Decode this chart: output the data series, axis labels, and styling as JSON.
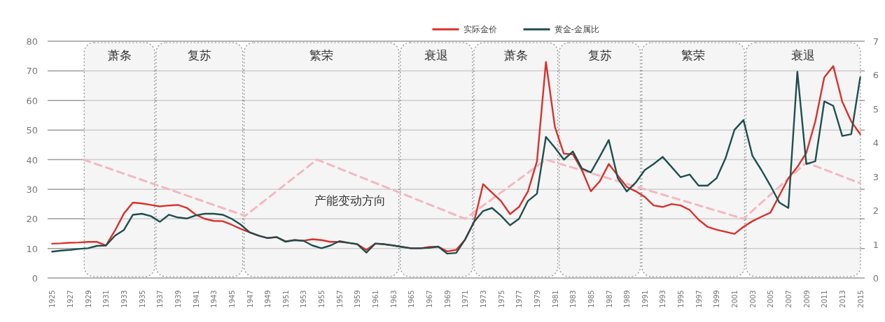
{
  "chart_data": {
    "type": "line",
    "x": [
      1925,
      1926,
      1927,
      1928,
      1929,
      1930,
      1931,
      1932,
      1933,
      1934,
      1935,
      1936,
      1937,
      1938,
      1939,
      1940,
      1941,
      1942,
      1943,
      1944,
      1945,
      1946,
      1947,
      1948,
      1949,
      1950,
      1951,
      1952,
      1953,
      1954,
      1955,
      1956,
      1957,
      1958,
      1959,
      1960,
      1961,
      1962,
      1963,
      1964,
      1965,
      1966,
      1967,
      1968,
      1969,
      1970,
      1971,
      1972,
      1973,
      1974,
      1975,
      1976,
      1977,
      1978,
      1979,
      1980,
      1981,
      1982,
      1983,
      1984,
      1985,
      1986,
      1987,
      1988,
      1989,
      1990,
      1991,
      1992,
      1993,
      1994,
      1995,
      1996,
      1997,
      1998,
      1999,
      2000,
      2001,
      2002,
      2003,
      2004,
      2005,
      2006,
      2007,
      2008,
      2009,
      2010,
      2011,
      2012,
      2013,
      2014,
      2015
    ],
    "series": [
      {
        "name": "实际金价",
        "color": "#d9302c",
        "values": [
          11.6,
          11.7,
          11.9,
          12,
          12.2,
          12.2,
          11,
          16,
          21.8,
          25.5,
          25.2,
          24.7,
          24.2,
          24.5,
          24.7,
          23.7,
          21.4,
          20,
          19.3,
          19.2,
          18,
          16.6,
          15.4,
          14.3,
          13.5,
          13.8,
          12.4,
          12.8,
          12.6,
          13.1,
          12.8,
          12.2,
          12.2,
          11.9,
          11.4,
          9.5,
          11.6,
          11.4,
          11,
          10.5,
          10,
          10,
          10.5,
          10.6,
          9,
          9.5,
          13,
          19,
          31.7,
          28.8,
          26,
          21.6,
          24,
          29.3,
          39.4,
          73,
          51,
          42,
          41.8,
          36.5,
          29.3,
          32.7,
          38.5,
          34.6,
          30.8,
          29.3,
          27.4,
          24.5,
          24,
          25,
          24.5,
          23,
          19.7,
          17.3,
          16.3,
          15.6,
          14.9,
          17.3,
          19.2,
          20.7,
          22.1,
          27.9,
          33.7,
          37.5,
          42.3,
          52.9,
          67.8,
          71.6,
          59.6,
          52.9,
          48.6
        ]
      },
      {
        "name": "黄金-金属比",
        "color": "#1f4e4f",
        "axis": "y2",
        "values": [
          0.78,
          0.81,
          0.83,
          0.86,
          0.88,
          0.95,
          0.96,
          1.25,
          1.42,
          1.87,
          1.9,
          1.83,
          1.66,
          1.87,
          1.79,
          1.76,
          1.85,
          1.9,
          1.9,
          1.87,
          1.75,
          1.58,
          1.35,
          1.25,
          1.18,
          1.21,
          1.07,
          1.12,
          1.1,
          0.96,
          0.88,
          0.96,
          1.09,
          1.04,
          1.0,
          0.75,
          1.02,
          1.0,
          0.96,
          0.92,
          0.88,
          0.88,
          0.89,
          0.93,
          0.72,
          0.74,
          1.14,
          1.66,
          1.98,
          2.07,
          1.84,
          1.56,
          1.75,
          2.28,
          2.49,
          4.17,
          3.85,
          3.5,
          3.74,
          3.24,
          3.12,
          3.59,
          4.08,
          2.95,
          2.56,
          2.82,
          3.19,
          3.37,
          3.58,
          3.28,
          2.98,
          3.06,
          2.73,
          2.73,
          2.95,
          3.54,
          4.38,
          4.67,
          3.61,
          3.19,
          2.73,
          2.23,
          2.07,
          6.1,
          3.37,
          3.45,
          5.22,
          5.09,
          4.2,
          4.25,
          5.93
        ]
      },
      {
        "color": "#f2b8c0",
        "line_style": "dashed",
        "x": [
          1928.5,
          1946.5,
          1954.5,
          1971,
          1980,
          2002,
          2009,
          2015
        ],
        "values": [
          40,
          21,
          40,
          20,
          40,
          20,
          39,
          32
        ]
      }
    ],
    "ylim": [
      0,
      80
    ],
    "yticks": [
      0,
      10,
      20,
      30,
      40,
      50,
      60,
      70,
      80
    ],
    "y2lim": [
      0,
      7
    ],
    "y2ticks": [
      0,
      1,
      2,
      3,
      4,
      5,
      6,
      7
    ],
    "xlim": [
      1924.5,
      2015.5
    ],
    "xticks": [
      1925,
      1927,
      1929,
      1931,
      1933,
      1935,
      1937,
      1939,
      1941,
      1943,
      1945,
      1947,
      1949,
      1951,
      1953,
      1955,
      1957,
      1959,
      1961,
      1963,
      1965,
      1967,
      1969,
      1971,
      1973,
      1975,
      1977,
      1979,
      1981,
      1983,
      1985,
      1987,
      1989,
      1991,
      1993,
      1995,
      1997,
      1999,
      2001,
      2003,
      2005,
      2007,
      2009,
      2011,
      2013,
      2015
    ],
    "grid": "y",
    "legend": "top",
    "bands": [
      {
        "axis": "x",
        "from": 1928.5,
        "to": 1936.5,
        "label": "萧条"
      },
      {
        "axis": "x",
        "from": 1936.5,
        "to": 1946.3,
        "label": "复苏"
      },
      {
        "axis": "x",
        "from": 1946.3,
        "to": 1963.7,
        "label": "繁荣"
      },
      {
        "axis": "x",
        "from": 1963.7,
        "to": 1971.9,
        "label": "衰退"
      },
      {
        "axis": "x",
        "from": 1971.9,
        "to": 1981.4,
        "label": "萧条"
      },
      {
        "axis": "x",
        "from": 1981.4,
        "to": 1990.6,
        "label": "复苏"
      },
      {
        "axis": "x",
        "from": 1990.6,
        "to": 2002.2,
        "label": "繁荣"
      },
      {
        "axis": "x",
        "from": 2002.2,
        "to": 2015.1,
        "label": "衰退"
      }
    ],
    "annotations": [
      "产能变动方向"
    ]
  }
}
